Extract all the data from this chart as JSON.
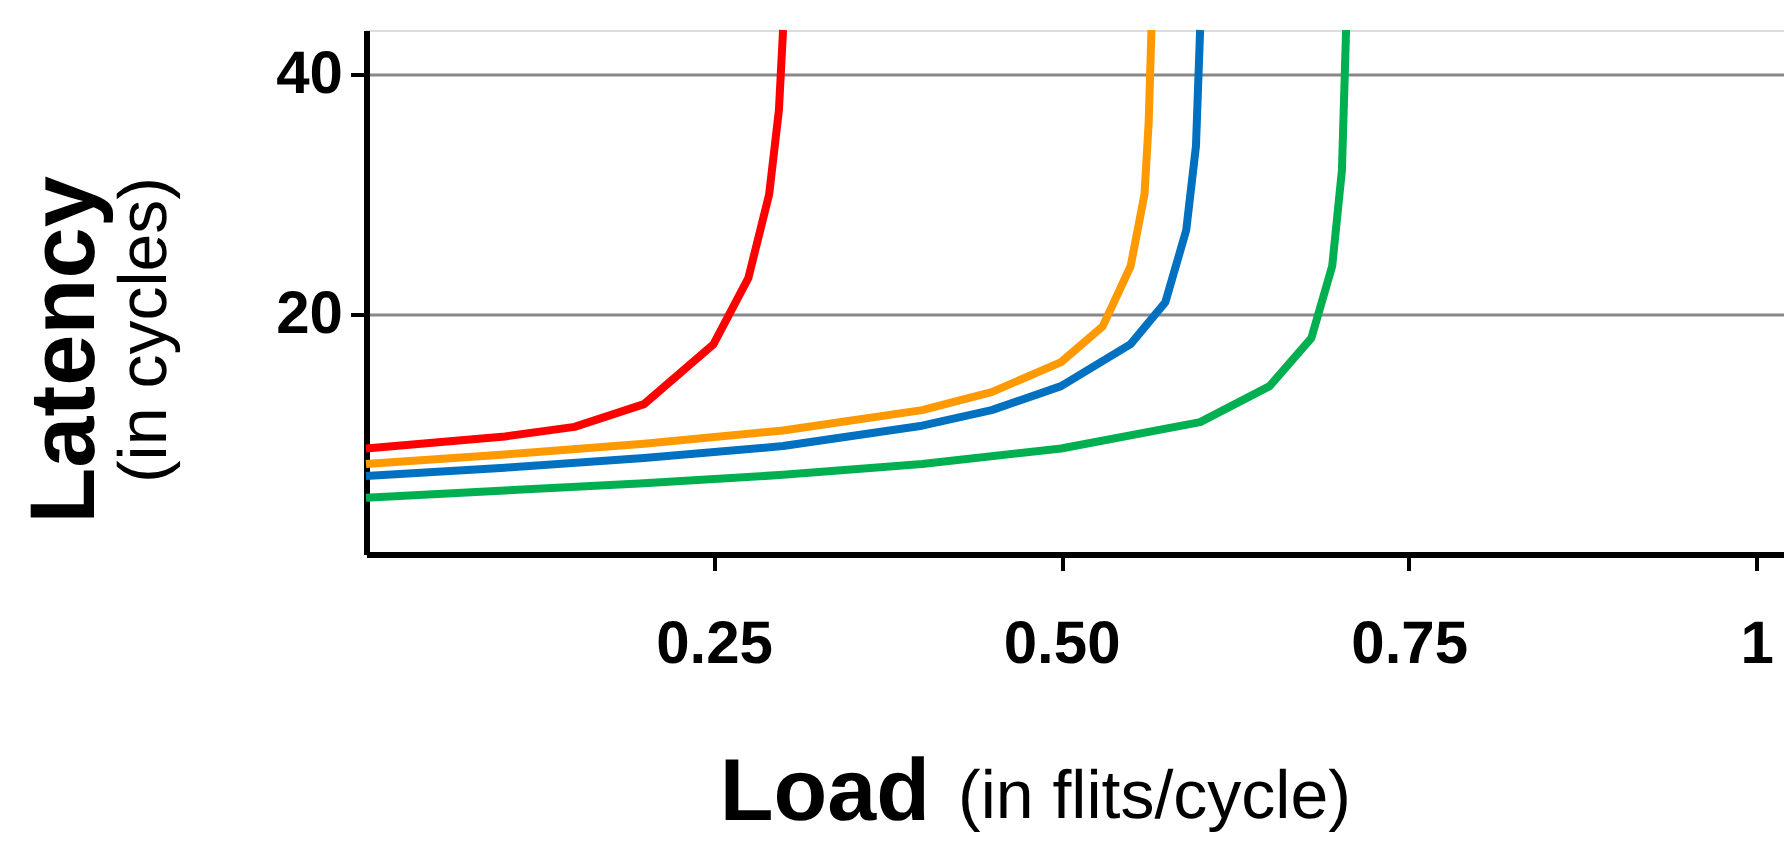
{
  "chart_data": {
    "type": "line",
    "xlabel": "Load (in flits/cycle)",
    "ylabel": "Latency (in cycles)",
    "xlim": [
      0,
      1.02
    ],
    "ylim": [
      0,
      43.7
    ],
    "xticks": [
      {
        "value": 0.25,
        "label": "0.25"
      },
      {
        "value": 0.5,
        "label": "0.50"
      },
      {
        "value": 0.75,
        "label": "0.75"
      },
      {
        "value": 1,
        "label": "1"
      }
    ],
    "yticks": [
      20,
      40
    ],
    "grid": "y",
    "marker": "none",
    "line_style": "solid",
    "series": [
      {
        "color": "#ff0000",
        "x": [
          0,
          0.05,
          0.1,
          0.15,
          0.2,
          0.25,
          0.275,
          0.29,
          0.297,
          0.3
        ],
        "values": [
          8.8,
          9.3,
          9.8,
          10.6,
          12.5,
          17.5,
          23,
          30,
          37,
          43.7
        ]
      },
      {
        "color": "#ff9900",
        "x": [
          0,
          0.1,
          0.2,
          0.3,
          0.4,
          0.45,
          0.5,
          0.53,
          0.55,
          0.56,
          0.563,
          0.565
        ],
        "values": [
          7.5,
          8.3,
          9.2,
          10.3,
          12,
          13.5,
          16,
          19,
          24,
          30,
          36,
          43.7
        ]
      },
      {
        "color": "#0070c0",
        "x": [
          0,
          0.1,
          0.2,
          0.3,
          0.4,
          0.45,
          0.5,
          0.55,
          0.575,
          0.59,
          0.597,
          0.6
        ],
        "values": [
          6.5,
          7.2,
          8,
          9,
          10.7,
          12,
          14,
          17.5,
          21,
          27,
          34,
          43.7
        ]
      },
      {
        "color": "#00b050",
        "x": [
          0,
          0.1,
          0.2,
          0.3,
          0.4,
          0.5,
          0.6,
          0.65,
          0.68,
          0.695,
          0.702,
          0.705
        ],
        "values": [
          4.7,
          5.3,
          5.9,
          6.6,
          7.5,
          8.8,
          11,
          14,
          18,
          24,
          32,
          43.7
        ]
      }
    ]
  }
}
